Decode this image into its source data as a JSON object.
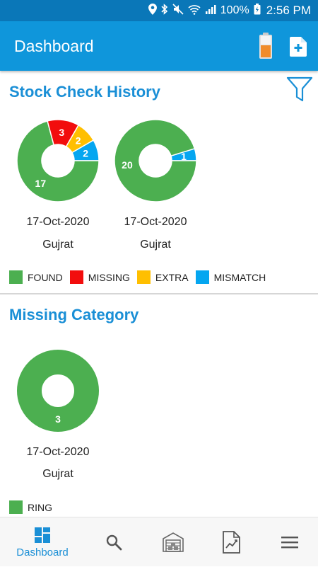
{
  "status_bar": {
    "battery": "100%",
    "time": "2:56 PM"
  },
  "header": {
    "title": "Dashboard"
  },
  "stock_check": {
    "title": "Stock Check History",
    "charts": [
      {
        "date": "17-Oct-2020",
        "place": "Gujrat"
      },
      {
        "date": "17-Oct-2020",
        "place": "Gujrat"
      }
    ],
    "legend": [
      {
        "label": "FOUND",
        "color": "#4caf50"
      },
      {
        "label": "MISSING",
        "color": "#f20d0d"
      },
      {
        "label": "EXTRA",
        "color": "#ffbf00"
      },
      {
        "label": "MISMATCH",
        "color": "#05a6f0"
      }
    ]
  },
  "missing_category": {
    "title": "Missing Category",
    "charts": [
      {
        "date": "17-Oct-2020",
        "place": "Gujrat"
      }
    ],
    "legend": [
      {
        "label": "RING",
        "color": "#4caf50"
      }
    ]
  },
  "bottom_nav": {
    "active_label": "Dashboard"
  },
  "chart_data": [
    {
      "type": "pie",
      "categories": [
        "FOUND",
        "MISSING",
        "EXTRA",
        "MISMATCH"
      ],
      "values": [
        17,
        3,
        2,
        2
      ],
      "colors": [
        "#4caf50",
        "#f20d0d",
        "#ffbf00",
        "#05a6f0"
      ]
    },
    {
      "type": "pie",
      "categories": [
        "FOUND",
        "MISSING",
        "EXTRA",
        "MISMATCH"
      ],
      "values": [
        20,
        0,
        0,
        1
      ],
      "colors": [
        "#4caf50",
        "#f20d0d",
        "#ffbf00",
        "#05a6f0"
      ]
    },
    {
      "type": "pie",
      "categories": [
        "RING"
      ],
      "values": [
        3
      ],
      "colors": [
        "#4caf50"
      ]
    }
  ]
}
